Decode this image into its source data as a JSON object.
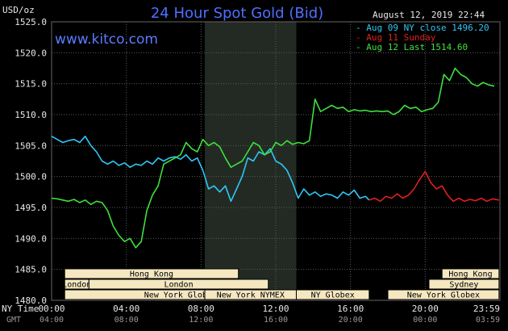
{
  "header": {
    "title": "24 Hour Spot Gold (Bid)",
    "unit_label": "USD/oz",
    "timestamp": "August 12, 2019 22:44",
    "site": "www.kitco.com"
  },
  "legend": [
    {
      "text": "Aug 09 NY close 1496.20",
      "color": "#2fc7f5"
    },
    {
      "text": "Aug 11 Sunday",
      "color": "#e02020"
    },
    {
      "text": "Aug 12 Last 1514.60",
      "color": "#3ee03e"
    }
  ],
  "axis": {
    "nytime_label": "NY Time",
    "gmt_label": "GMT",
    "ny_ticks": [
      "00:00",
      "04:00",
      "08:00",
      "12:00",
      "16:00",
      "20:00",
      "23:59"
    ],
    "gmt_ticks": [
      "04:00",
      "08:00",
      "12:00",
      "16:00",
      "20:00",
      "00:00",
      "03:59"
    ]
  },
  "sessions": [
    {
      "label": "Hong Kong",
      "start": 0.7,
      "end": 10.0,
      "row": 0
    },
    {
      "label": "London",
      "start": 0.7,
      "end": 2.0,
      "row": 1
    },
    {
      "label": "London",
      "start": 2.0,
      "end": 11.6,
      "row": 1
    },
    {
      "label": "New York Globex",
      "start": 0.7,
      "end": 13.1,
      "row": 2
    },
    {
      "label": "New York NYMEX",
      "start": 8.2,
      "end": 13.1,
      "row": 2
    },
    {
      "label": "NY Globex",
      "start": 13.1,
      "end": 17.0,
      "row": 2
    },
    {
      "label": "Hong Kong",
      "start": 20.9,
      "end": 23.95,
      "row": 0
    },
    {
      "label": "Sydney",
      "start": 20.2,
      "end": 23.95,
      "row": 1
    },
    {
      "label": "New York Globex",
      "start": 18.0,
      "end": 23.95,
      "row": 2
    }
  ],
  "chart_data": {
    "type": "line",
    "title": "24 Hour Spot Gold (Bid)",
    "ylabel": "USD/oz",
    "ylim": [
      1480,
      1525
    ],
    "yticks": [
      1480.0,
      1485.0,
      1490.0,
      1495.0,
      1500.0,
      1505.0,
      1510.0,
      1515.0,
      1520.0,
      1525.0
    ],
    "xlim_hours": [
      0,
      24
    ],
    "x_unit": "hours (NY Time)",
    "highlight_band_hours": [
      8.2,
      13.1
    ],
    "grid": true,
    "legend_position": "top-right",
    "series": [
      {
        "name": "Aug 09 NY close 1496.20",
        "color": "#2fc7f5",
        "x": [
          0.0,
          0.3,
          0.6,
          0.9,
          1.2,
          1.5,
          1.8,
          2.1,
          2.4,
          2.7,
          3.0,
          3.3,
          3.6,
          3.9,
          4.2,
          4.5,
          4.8,
          5.1,
          5.4,
          5.7,
          6.0,
          6.3,
          6.6,
          6.9,
          7.2,
          7.5,
          7.8,
          8.1,
          8.4,
          8.7,
          9.0,
          9.3,
          9.6,
          9.9,
          10.2,
          10.5,
          10.8,
          11.1,
          11.4,
          11.7,
          12.0,
          12.3,
          12.6,
          12.9,
          13.2,
          13.5,
          13.8,
          14.1,
          14.4,
          14.7,
          15.0,
          15.3,
          15.6,
          15.9,
          16.2,
          16.5,
          16.8,
          17.0
        ],
        "y": [
          1506.5,
          1506.0,
          1505.5,
          1505.8,
          1506.0,
          1505.5,
          1506.5,
          1505.0,
          1504.0,
          1502.5,
          1502.0,
          1502.5,
          1501.8,
          1502.2,
          1501.5,
          1502.0,
          1501.8,
          1502.5,
          1502.0,
          1503.0,
          1502.5,
          1503.0,
          1503.2,
          1502.8,
          1503.5,
          1502.5,
          1503.0,
          1501.0,
          1498.0,
          1498.5,
          1497.5,
          1498.5,
          1496.0,
          1498.0,
          1500.0,
          1503.0,
          1502.5,
          1504.0,
          1503.5,
          1504.5,
          1502.5,
          1502.0,
          1501.0,
          1499.0,
          1496.5,
          1498.0,
          1497.0,
          1497.5,
          1496.8,
          1497.2,
          1497.0,
          1496.5,
          1497.5,
          1497.0,
          1497.8,
          1496.5,
          1496.8,
          1496.2
        ]
      },
      {
        "name": "Aug 11 Sunday",
        "color": "#e02020",
        "x": [
          17.0,
          17.3,
          17.6,
          17.9,
          18.2,
          18.5,
          18.8,
          19.1,
          19.4,
          19.7,
          20.0,
          20.3,
          20.6,
          20.9,
          21.2,
          21.5,
          21.8,
          22.1,
          22.4,
          22.7,
          23.0,
          23.3,
          23.6,
          23.95
        ],
        "y": [
          1496.2,
          1496.5,
          1496.0,
          1496.8,
          1496.5,
          1497.2,
          1496.5,
          1497.0,
          1498.0,
          1499.5,
          1500.8,
          1499.0,
          1498.0,
          1498.5,
          1497.0,
          1496.0,
          1496.5,
          1496.0,
          1496.3,
          1496.1,
          1496.5,
          1496.0,
          1496.4,
          1496.2
        ]
      },
      {
        "name": "Aug 12 Last 1514.60",
        "color": "#3ee03e",
        "x": [
          0.0,
          0.3,
          0.6,
          0.9,
          1.2,
          1.5,
          1.8,
          2.1,
          2.4,
          2.7,
          3.0,
          3.3,
          3.6,
          3.9,
          4.2,
          4.5,
          4.8,
          5.1,
          5.4,
          5.7,
          6.0,
          6.3,
          6.6,
          6.9,
          7.2,
          7.5,
          7.8,
          8.1,
          8.4,
          8.7,
          9.0,
          9.3,
          9.6,
          9.9,
          10.2,
          10.5,
          10.8,
          11.1,
          11.4,
          11.7,
          12.0,
          12.3,
          12.6,
          12.9,
          13.2,
          13.5,
          13.8,
          14.1,
          14.4,
          14.7,
          15.0,
          15.3,
          15.6,
          15.9,
          16.2,
          16.5,
          16.8,
          17.1,
          17.4,
          17.7,
          18.0,
          18.3,
          18.6,
          18.9,
          19.2,
          19.5,
          19.8,
          20.1,
          20.4,
          20.7,
          21.0,
          21.3,
          21.6,
          21.9,
          22.2,
          22.5,
          22.8,
          23.1,
          23.4,
          23.7
        ],
        "y": [
          1496.5,
          1496.4,
          1496.2,
          1496.0,
          1496.3,
          1495.8,
          1496.2,
          1495.5,
          1496.0,
          1495.8,
          1494.5,
          1492.0,
          1490.5,
          1489.5,
          1490.0,
          1488.5,
          1489.5,
          1494.5,
          1497.0,
          1498.5,
          1502.0,
          1502.5,
          1503.0,
          1503.5,
          1505.5,
          1504.5,
          1504.0,
          1506.0,
          1505.0,
          1505.5,
          1504.8,
          1503.0,
          1501.5,
          1502.0,
          1502.5,
          1504.0,
          1505.5,
          1505.0,
          1503.5,
          1504.0,
          1505.5,
          1505.0,
          1505.8,
          1505.2,
          1505.5,
          1505.3,
          1505.8,
          1512.5,
          1510.5,
          1511.0,
          1511.5,
          1511.0,
          1511.2,
          1510.5,
          1510.8,
          1510.6,
          1510.7,
          1510.5,
          1510.6,
          1510.5,
          1510.6,
          1510.0,
          1510.5,
          1511.5,
          1511.0,
          1511.2,
          1510.5,
          1510.8,
          1511.0,
          1512.0,
          1516.5,
          1515.5,
          1517.5,
          1516.5,
          1516.0,
          1515.0,
          1514.6,
          1515.2,
          1514.8,
          1514.6
        ]
      }
    ]
  }
}
